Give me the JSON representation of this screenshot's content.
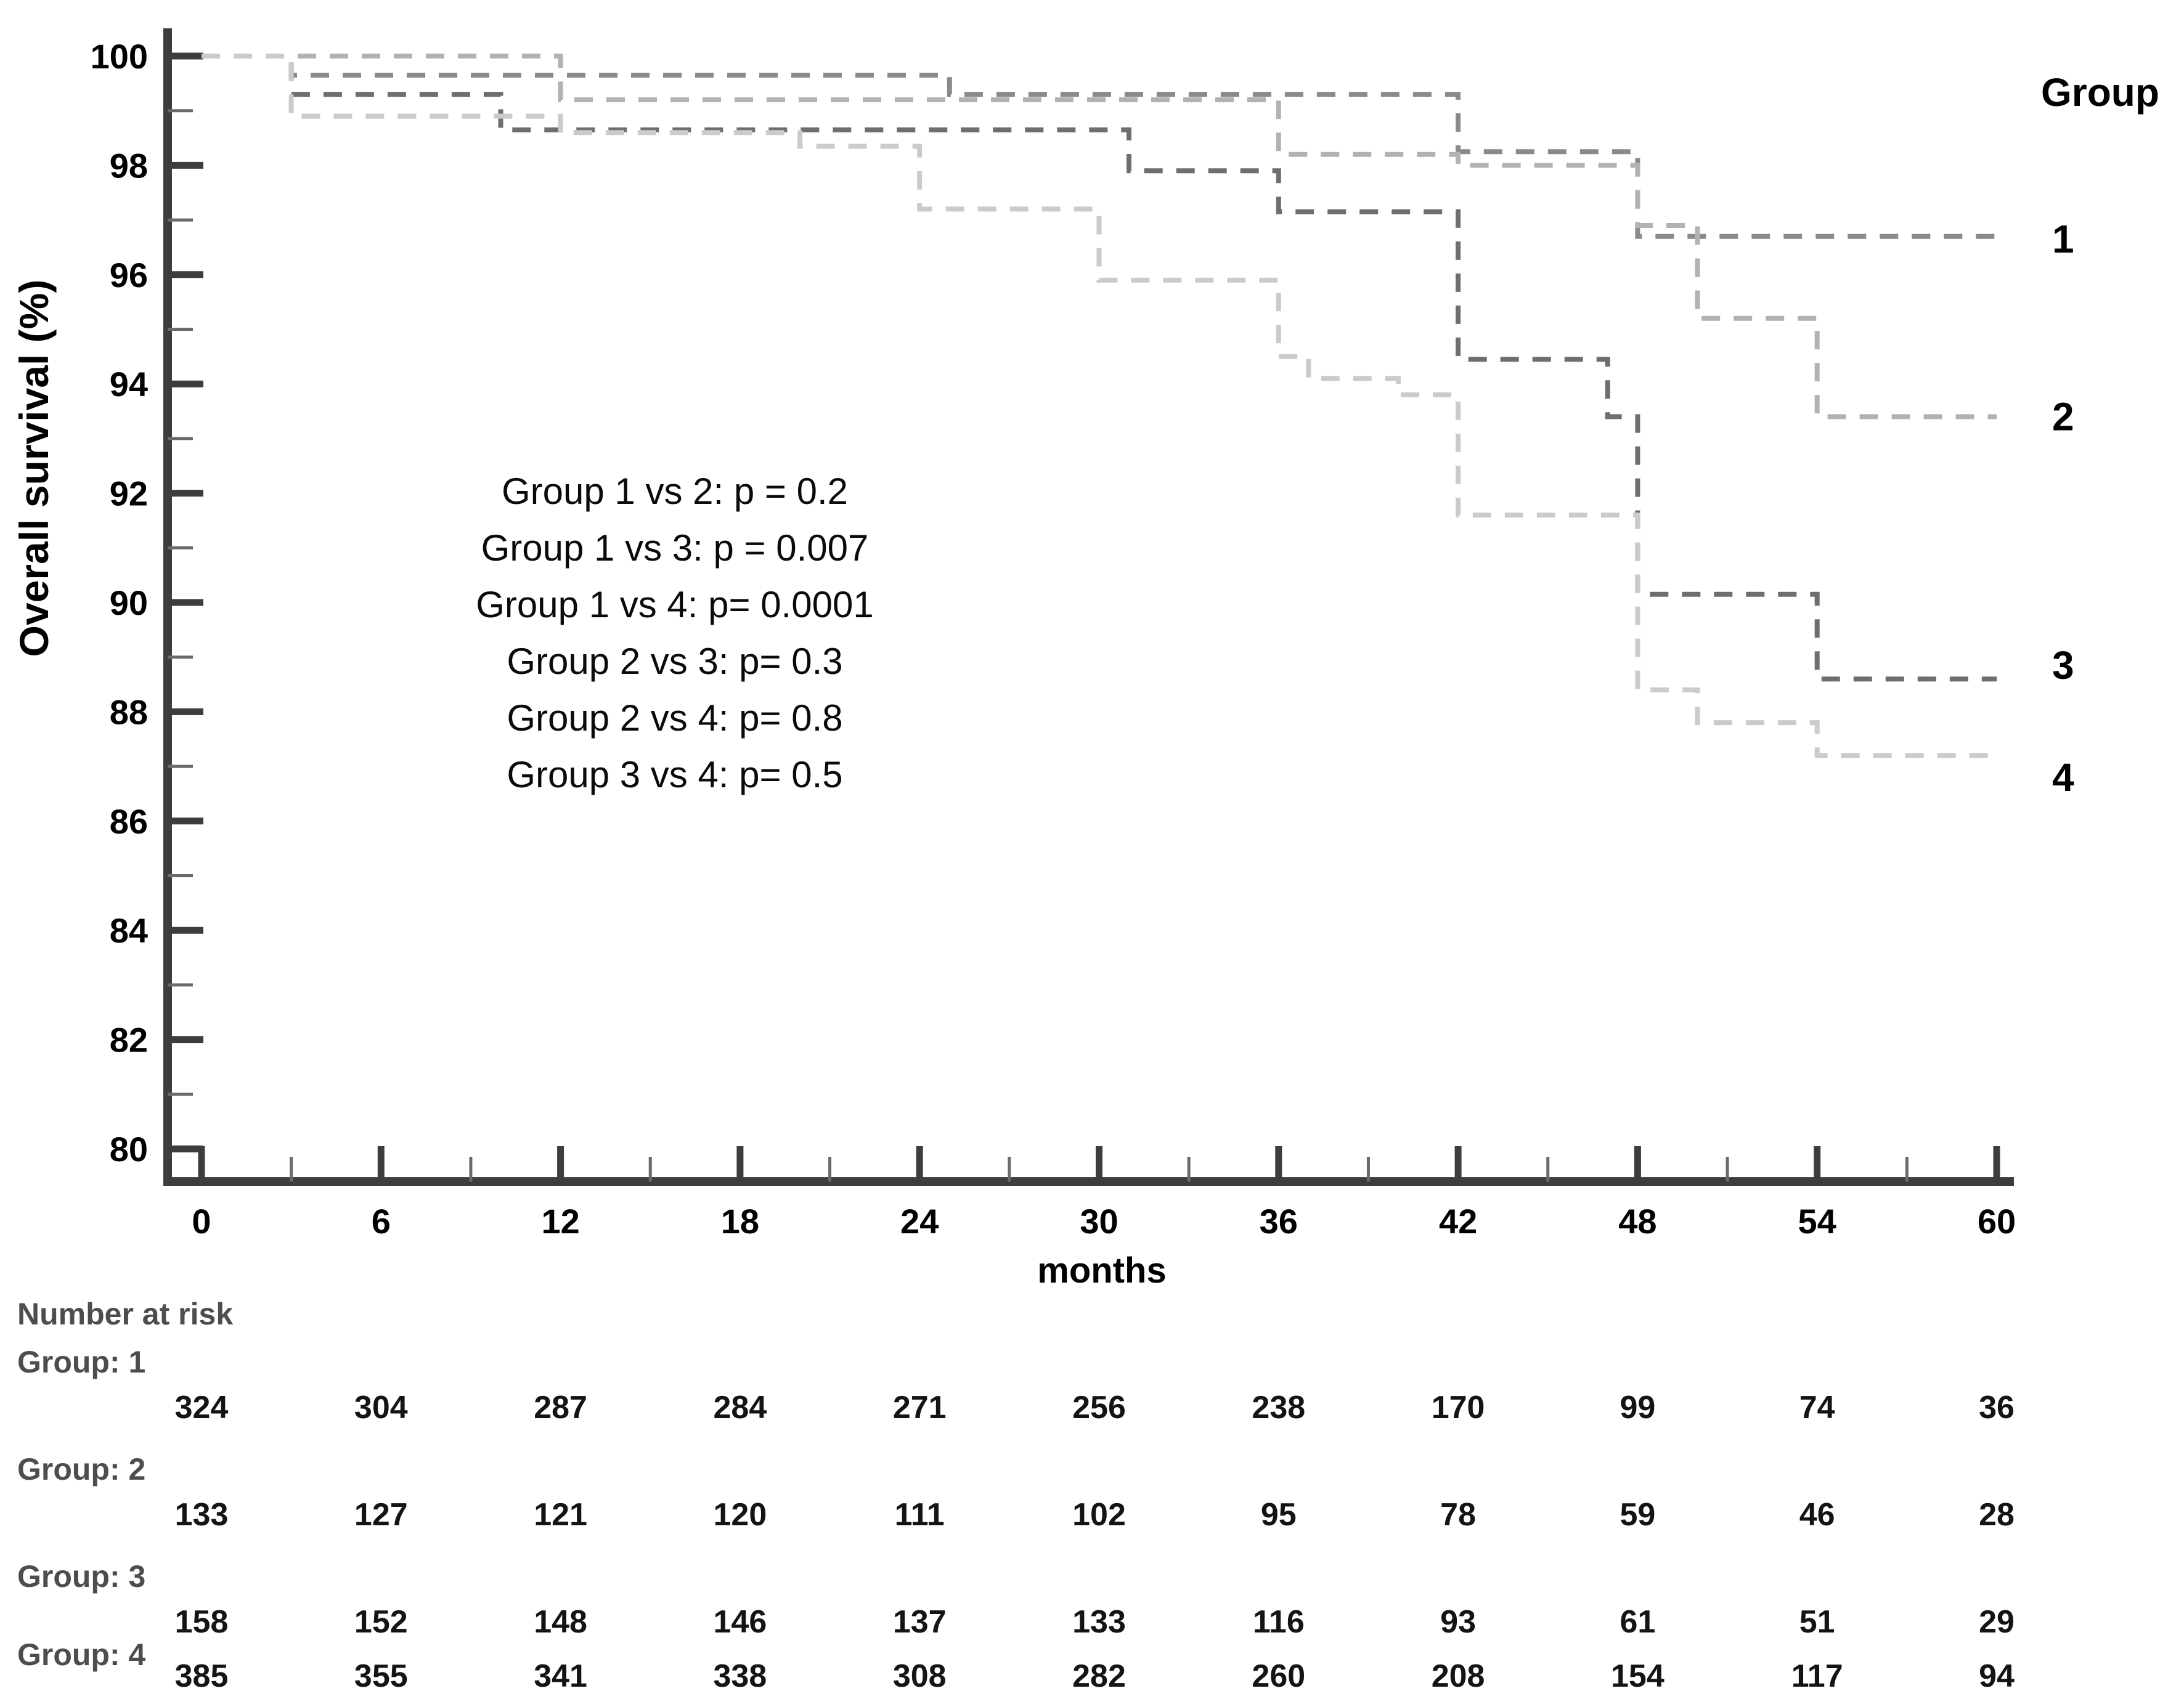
{
  "figure": {
    "background": "#ffffff"
  },
  "chart_data": {
    "type": "line",
    "variant": "kaplan-meier-step",
    "title": "",
    "xlabel": "months",
    "ylabel": "Overall survival (%)",
    "xlim": [
      0,
      60
    ],
    "ylim": [
      80,
      100
    ],
    "x_ticks": [
      0,
      6,
      12,
      18,
      24,
      30,
      36,
      42,
      48,
      54,
      60
    ],
    "x_minor_tick_step": 3,
    "y_tick_step": 2,
    "y_minor_tick_step": 1,
    "grid": false,
    "legend_title": "Group",
    "legend_position": "right",
    "annotations": [
      "Group 1 vs 2: p = 0.2",
      "Group 1 vs 3: p = 0.007",
      "Group 1 vs 4: p= 0.0001",
      "Group 2 vs 3: p= 0.3",
      "Group 2 vs 4: p= 0.8",
      "Group 3 vs 4: p= 0.5"
    ],
    "series": [
      {
        "name": "1",
        "color": "#8a8a8a",
        "label_y": 96.65,
        "points": [
          [
            0,
            100
          ],
          [
            3,
            100
          ],
          [
            3,
            99.65
          ],
          [
            25,
            99.65
          ],
          [
            25,
            99.3
          ],
          [
            42,
            99.3
          ],
          [
            42,
            98.25
          ],
          [
            48,
            98.25
          ],
          [
            48,
            96.7
          ],
          [
            60,
            96.7
          ]
        ]
      },
      {
        "name": "2",
        "color": "#b2b2b2",
        "label_y": 93.4,
        "points": [
          [
            0,
            100
          ],
          [
            12,
            100
          ],
          [
            12,
            99.2
          ],
          [
            36,
            99.2
          ],
          [
            36,
            98.2
          ],
          [
            42,
            98.2
          ],
          [
            42,
            98.0
          ],
          [
            48,
            98.0
          ],
          [
            48,
            96.9
          ],
          [
            50,
            96.9
          ],
          [
            50,
            95.2
          ],
          [
            54,
            95.2
          ],
          [
            54,
            93.4
          ],
          [
            60,
            93.4
          ]
        ]
      },
      {
        "name": "3",
        "color": "#6e6e6e",
        "label_y": 88.85,
        "points": [
          [
            0,
            100
          ],
          [
            3,
            100
          ],
          [
            3,
            99.3
          ],
          [
            10,
            99.3
          ],
          [
            10,
            98.65
          ],
          [
            31,
            98.65
          ],
          [
            31,
            97.9
          ],
          [
            36,
            97.9
          ],
          [
            36,
            97.15
          ],
          [
            42,
            97.15
          ],
          [
            42,
            94.45
          ],
          [
            47,
            94.45
          ],
          [
            47,
            93.4
          ],
          [
            48,
            93.4
          ],
          [
            48,
            90.15
          ],
          [
            54,
            90.15
          ],
          [
            54,
            88.6
          ],
          [
            60,
            88.6
          ]
        ]
      },
      {
        "name": "4",
        "color": "#cbcbcb",
        "label_y": 86.8,
        "points": [
          [
            0,
            100
          ],
          [
            3,
            100
          ],
          [
            3,
            98.9
          ],
          [
            12,
            98.9
          ],
          [
            12,
            98.6
          ],
          [
            20,
            98.6
          ],
          [
            20,
            98.35
          ],
          [
            24,
            98.35
          ],
          [
            24,
            97.2
          ],
          [
            30,
            97.2
          ],
          [
            30,
            95.9
          ],
          [
            36,
            95.9
          ],
          [
            36,
            94.5
          ],
          [
            37,
            94.5
          ],
          [
            37,
            94.1
          ],
          [
            40,
            94.1
          ],
          [
            40,
            93.8
          ],
          [
            42,
            93.8
          ],
          [
            42,
            91.6
          ],
          [
            48,
            91.6
          ],
          [
            48,
            88.4
          ],
          [
            50,
            88.4
          ],
          [
            50,
            87.8
          ],
          [
            54,
            87.8
          ],
          [
            54,
            87.2
          ],
          [
            60,
            87.2
          ]
        ]
      }
    ]
  },
  "at_risk_table": {
    "title": "Number at risk",
    "months": [
      0,
      6,
      12,
      18,
      24,
      30,
      36,
      42,
      48,
      54,
      60
    ],
    "rows": [
      {
        "label": "Group: 1",
        "values": [
          324,
          304,
          287,
          284,
          271,
          256,
          238,
          170,
          99,
          74,
          36
        ]
      },
      {
        "label": "Group: 2",
        "values": [
          133,
          127,
          121,
          120,
          111,
          102,
          95,
          78,
          59,
          46,
          28
        ]
      },
      {
        "label": "Group: 3",
        "values": [
          158,
          152,
          148,
          146,
          137,
          133,
          116,
          93,
          61,
          51,
          29
        ]
      },
      {
        "label": "Group: 4",
        "values": [
          385,
          355,
          341,
          338,
          308,
          282,
          260,
          208,
          154,
          117,
          94
        ]
      }
    ]
  }
}
